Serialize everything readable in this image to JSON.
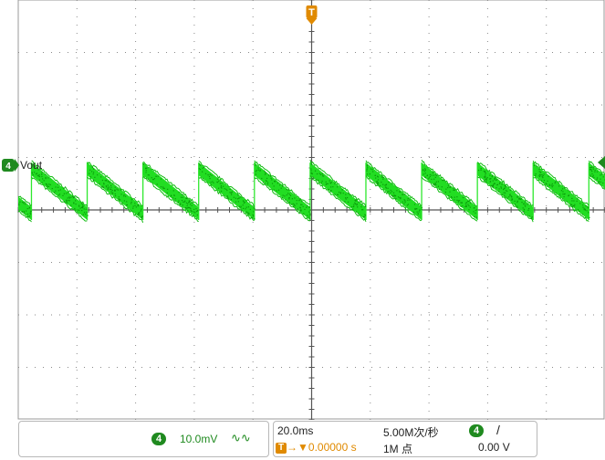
{
  "chart_data": {
    "type": "line",
    "channel": {
      "number": "4",
      "label": "Vout",
      "color": "#00cc00",
      "scale": "10.0mV",
      "coupling_icon": "ac-coupling-icon"
    },
    "timebase": {
      "scale": "20.0ms",
      "sample_rate": "5.00M次/秒",
      "record_length": "1M 点",
      "trigger_position": "0.00000 s"
    },
    "trigger": {
      "marker": "T",
      "source": "4",
      "slope_icon": "rising-edge-icon",
      "level": "0.00 V"
    },
    "grid": {
      "divisions_x": 10,
      "divisions_y": 8
    },
    "ylim": [
      -40,
      40
    ],
    "xlim": [
      -100,
      100
    ],
    "waveform": "sawtooth",
    "period_ms": 19,
    "peak_mV": 8.5,
    "trough_mV": 0.0,
    "first_rise_ms": -95.5
  }
}
